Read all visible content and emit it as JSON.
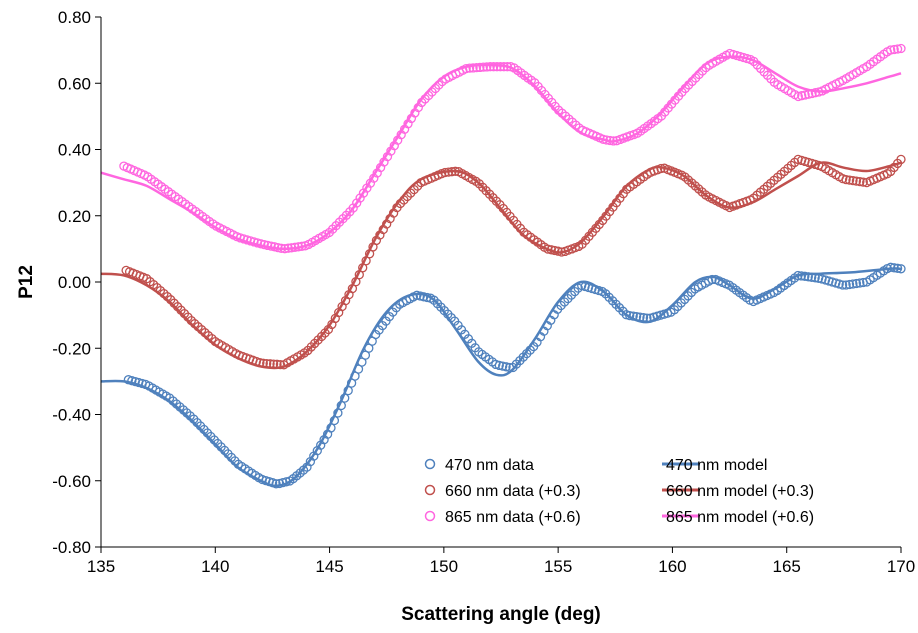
{
  "chart_data": {
    "type": "scatter",
    "xlabel": "Scattering angle (deg)",
    "ylabel": "P12",
    "xlim": [
      135,
      170
    ],
    "ylim": [
      -0.8,
      0.8
    ],
    "xticks": [
      135,
      140,
      145,
      150,
      155,
      160,
      165,
      170
    ],
    "yticks": [
      -0.8,
      -0.6,
      -0.4,
      -0.2,
      0.0,
      0.2,
      0.4,
      0.6,
      0.8
    ],
    "xtick_labels": [
      "135",
      "140",
      "145",
      "150",
      "155",
      "160",
      "165",
      "170"
    ],
    "ytick_labels": [
      "-0.80",
      "-0.60",
      "-0.40",
      "-0.20",
      "0.00",
      "0.20",
      "0.40",
      "0.60",
      "0.80"
    ],
    "grid": false,
    "legend_position": "bottom-right",
    "series": [
      {
        "name": "470 nm data",
        "kind": "markers",
        "color": "#4f81bd",
        "points": [
          [
            136.2,
            -0.295
          ],
          [
            137,
            -0.31
          ],
          [
            138,
            -0.35
          ],
          [
            139,
            -0.41
          ],
          [
            140,
            -0.48
          ],
          [
            141,
            -0.55
          ],
          [
            142,
            -0.595
          ],
          [
            142.7,
            -0.61
          ],
          [
            143.3,
            -0.6
          ],
          [
            144,
            -0.56
          ],
          [
            145,
            -0.45
          ],
          [
            146,
            -0.3
          ],
          [
            147,
            -0.16
          ],
          [
            148,
            -0.07
          ],
          [
            148.8,
            -0.04
          ],
          [
            149.5,
            -0.05
          ],
          [
            150.5,
            -0.12
          ],
          [
            151.5,
            -0.21
          ],
          [
            152.3,
            -0.25
          ],
          [
            153,
            -0.26
          ],
          [
            154,
            -0.19
          ],
          [
            155,
            -0.08
          ],
          [
            156,
            -0.01
          ],
          [
            157,
            -0.03
          ],
          [
            158,
            -0.1
          ],
          [
            159,
            -0.11
          ],
          [
            160,
            -0.09
          ],
          [
            161,
            -0.02
          ],
          [
            161.8,
            0.01
          ],
          [
            162.5,
            -0.01
          ],
          [
            163.5,
            -0.06
          ],
          [
            164.5,
            -0.03
          ],
          [
            165.5,
            0.02
          ],
          [
            166.5,
            0.01
          ],
          [
            167.5,
            -0.01
          ],
          [
            168.5,
            0.0
          ],
          [
            169.5,
            0.045
          ],
          [
            170,
            0.04
          ]
        ]
      },
      {
        "name": "660 nm data (+0.3)",
        "kind": "markers",
        "color": "#c0504d",
        "points": [
          [
            136.1,
            0.035
          ],
          [
            137,
            0.01
          ],
          [
            138,
            -0.05
          ],
          [
            139,
            -0.12
          ],
          [
            140,
            -0.18
          ],
          [
            141,
            -0.22
          ],
          [
            142,
            -0.245
          ],
          [
            143,
            -0.25
          ],
          [
            144,
            -0.21
          ],
          [
            145,
            -0.14
          ],
          [
            146,
            -0.02
          ],
          [
            147,
            0.12
          ],
          [
            148,
            0.23
          ],
          [
            149,
            0.3
          ],
          [
            150,
            0.33
          ],
          [
            150.6,
            0.335
          ],
          [
            151.5,
            0.3
          ],
          [
            152.5,
            0.23
          ],
          [
            153.5,
            0.15
          ],
          [
            154.5,
            0.1
          ],
          [
            155.2,
            0.09
          ],
          [
            156,
            0.11
          ],
          [
            157,
            0.19
          ],
          [
            158,
            0.28
          ],
          [
            159,
            0.33
          ],
          [
            159.6,
            0.345
          ],
          [
            160.5,
            0.32
          ],
          [
            161.5,
            0.26
          ],
          [
            162.5,
            0.225
          ],
          [
            163.5,
            0.25
          ],
          [
            164.5,
            0.31
          ],
          [
            165.5,
            0.37
          ],
          [
            166.5,
            0.35
          ],
          [
            167.5,
            0.31
          ],
          [
            168.5,
            0.3
          ],
          [
            169.5,
            0.33
          ],
          [
            170,
            0.37
          ]
        ]
      },
      {
        "name": "865 nm data (+0.6)",
        "kind": "markers",
        "color": "#ff66e0",
        "points": [
          [
            136,
            0.35
          ],
          [
            137,
            0.32
          ],
          [
            138,
            0.27
          ],
          [
            139,
            0.22
          ],
          [
            140,
            0.17
          ],
          [
            141,
            0.135
          ],
          [
            142,
            0.115
          ],
          [
            143,
            0.1
          ],
          [
            144,
            0.11
          ],
          [
            145,
            0.15
          ],
          [
            146,
            0.22
          ],
          [
            147,
            0.32
          ],
          [
            148,
            0.43
          ],
          [
            149,
            0.54
          ],
          [
            150,
            0.61
          ],
          [
            151,
            0.645
          ],
          [
            152,
            0.65
          ],
          [
            153,
            0.65
          ],
          [
            154,
            0.6
          ],
          [
            155,
            0.52
          ],
          [
            156,
            0.46
          ],
          [
            157,
            0.43
          ],
          [
            157.5,
            0.425
          ],
          [
            158.5,
            0.45
          ],
          [
            159.5,
            0.5
          ],
          [
            160.5,
            0.58
          ],
          [
            161.5,
            0.65
          ],
          [
            162.5,
            0.69
          ],
          [
            163.5,
            0.67
          ],
          [
            164.5,
            0.6
          ],
          [
            165.5,
            0.56
          ],
          [
            166.5,
            0.575
          ],
          [
            167.5,
            0.61
          ],
          [
            168.5,
            0.65
          ],
          [
            169.5,
            0.7
          ],
          [
            170,
            0.705
          ]
        ]
      },
      {
        "name": "470 nm model",
        "kind": "line",
        "color": "#4f81bd",
        "points": [
          [
            135,
            -0.3
          ],
          [
            136,
            -0.3
          ],
          [
            137,
            -0.32
          ],
          [
            138,
            -0.36
          ],
          [
            139,
            -0.42
          ],
          [
            140,
            -0.49
          ],
          [
            141,
            -0.56
          ],
          [
            142,
            -0.6
          ],
          [
            142.7,
            -0.615
          ],
          [
            143.5,
            -0.59
          ],
          [
            144.5,
            -0.5
          ],
          [
            145.5,
            -0.36
          ],
          [
            146.5,
            -0.2
          ],
          [
            147.5,
            -0.09
          ],
          [
            148.5,
            -0.04
          ],
          [
            149.5,
            -0.05
          ],
          [
            150.5,
            -0.14
          ],
          [
            151.5,
            -0.24
          ],
          [
            152.3,
            -0.28
          ],
          [
            153,
            -0.265
          ],
          [
            154,
            -0.17
          ],
          [
            155,
            -0.06
          ],
          [
            156,
            0.0
          ],
          [
            157,
            -0.03
          ],
          [
            158,
            -0.1
          ],
          [
            159,
            -0.12
          ],
          [
            160,
            -0.07
          ],
          [
            161,
            0.0
          ],
          [
            161.8,
            0.015
          ],
          [
            162.5,
            -0.01
          ],
          [
            163.5,
            -0.05
          ],
          [
            164.5,
            -0.02
          ],
          [
            165.5,
            0.02
          ],
          [
            166.5,
            0.025
          ],
          [
            168,
            0.03
          ],
          [
            169.5,
            0.04
          ],
          [
            170,
            0.04
          ]
        ]
      },
      {
        "name": "660 nm model (+0.3)",
        "kind": "line",
        "color": "#c0504d",
        "points": [
          [
            135,
            0.025
          ],
          [
            136,
            0.02
          ],
          [
            137,
            -0.01
          ],
          [
            138,
            -0.06
          ],
          [
            139,
            -0.13
          ],
          [
            140,
            -0.19
          ],
          [
            141,
            -0.23
          ],
          [
            142,
            -0.255
          ],
          [
            143,
            -0.255
          ],
          [
            144,
            -0.21
          ],
          [
            145,
            -0.13
          ],
          [
            146,
            -0.01
          ],
          [
            147,
            0.13
          ],
          [
            148,
            0.24
          ],
          [
            149,
            0.31
          ],
          [
            150.5,
            0.335
          ],
          [
            151.5,
            0.3
          ],
          [
            152.5,
            0.22
          ],
          [
            153.5,
            0.14
          ],
          [
            154.5,
            0.1
          ],
          [
            155.2,
            0.09
          ],
          [
            156,
            0.12
          ],
          [
            157,
            0.2
          ],
          [
            158,
            0.29
          ],
          [
            159,
            0.34
          ],
          [
            159.6,
            0.345
          ],
          [
            160.5,
            0.32
          ],
          [
            161.5,
            0.26
          ],
          [
            162.5,
            0.225
          ],
          [
            163.5,
            0.24
          ],
          [
            164.5,
            0.28
          ],
          [
            165.5,
            0.32
          ],
          [
            166.5,
            0.36
          ],
          [
            167.5,
            0.345
          ],
          [
            168.5,
            0.335
          ],
          [
            169.5,
            0.35
          ],
          [
            170,
            0.36
          ]
        ]
      },
      {
        "name": "865 nm model (+0.6)",
        "kind": "line",
        "color": "#ff66e0",
        "points": [
          [
            135,
            0.33
          ],
          [
            136,
            0.31
          ],
          [
            137,
            0.29
          ],
          [
            138,
            0.25
          ],
          [
            139,
            0.21
          ],
          [
            140,
            0.165
          ],
          [
            141,
            0.13
          ],
          [
            142,
            0.11
          ],
          [
            143,
            0.1
          ],
          [
            144,
            0.11
          ],
          [
            145,
            0.15
          ],
          [
            146,
            0.22
          ],
          [
            147,
            0.33
          ],
          [
            148,
            0.44
          ],
          [
            149,
            0.55
          ],
          [
            150,
            0.62
          ],
          [
            151,
            0.65
          ],
          [
            152,
            0.655
          ],
          [
            153,
            0.645
          ],
          [
            154,
            0.59
          ],
          [
            155,
            0.51
          ],
          [
            156,
            0.45
          ],
          [
            157,
            0.43
          ],
          [
            157.5,
            0.425
          ],
          [
            158.5,
            0.45
          ],
          [
            159.5,
            0.51
          ],
          [
            160.5,
            0.59
          ],
          [
            161.5,
            0.66
          ],
          [
            162.5,
            0.68
          ],
          [
            163.5,
            0.67
          ],
          [
            164.5,
            0.63
          ],
          [
            165.5,
            0.59
          ],
          [
            166.5,
            0.575
          ],
          [
            167.5,
            0.585
          ],
          [
            168.5,
            0.6
          ],
          [
            169.5,
            0.62
          ],
          [
            170,
            0.63
          ]
        ]
      }
    ]
  }
}
